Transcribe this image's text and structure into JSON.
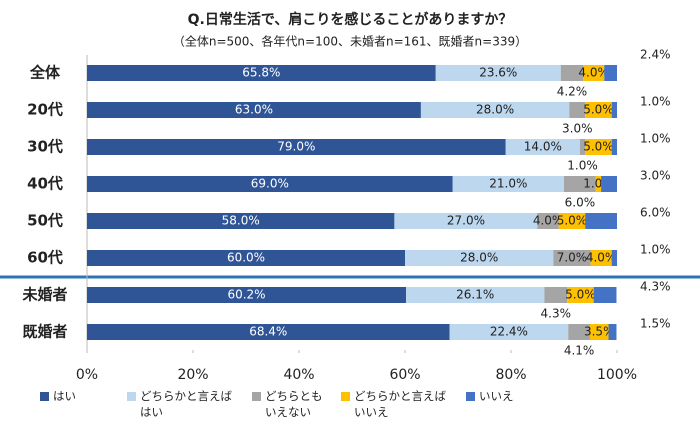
{
  "chart_data": {
    "type": "stacked-bar-horizontal",
    "title": "Q.日常生活で、肩こりを感じることがありますか？",
    "subtitle": "（全体n=500、各年代n=100、未婚者n=161、既婚者n=339）",
    "categories": [
      "全体",
      "20代",
      "30代",
      "40代",
      "50代",
      "60代",
      "未婚者",
      "既婚者"
    ],
    "series": [
      {
        "name": "はい",
        "color": "#2f5597",
        "values": [
          65.8,
          63.0,
          79.0,
          69.0,
          58.0,
          60.0,
          60.2,
          68.4
        ],
        "value_labels": [
          "65.8%",
          "63.0%",
          "79.0%",
          "69.0%",
          "58.0%",
          "60.0%",
          "60.2%",
          "68.4%"
        ]
      },
      {
        "name": "どちらかと言えばはい",
        "color": "#bdd7ee",
        "values": [
          23.6,
          28.0,
          14.0,
          21.0,
          27.0,
          28.0,
          26.1,
          22.4
        ],
        "value_labels": [
          "23.6%",
          "28.0%",
          "14.0%",
          "21.0%",
          "27.0%",
          "28.0%",
          "26.1%",
          "22.4%"
        ]
      },
      {
        "name": "どちらともいえない",
        "color": "#a5a5a5",
        "values": [
          4.2,
          3.0,
          1.0,
          6.0,
          4.0,
          7.0,
          4.3,
          4.1
        ],
        "value_labels": [
          "4.2%",
          "3.0%",
          "1.0%",
          "6.0%",
          "4.0%",
          "7.0%",
          "4.3%",
          "4.1%"
        ]
      },
      {
        "name": "どちらかと言えばいいえ",
        "color": "#ffc000",
        "values": [
          4.0,
          5.0,
          5.0,
          1.0,
          5.0,
          4.0,
          5.0,
          3.5
        ],
        "value_labels": [
          "4.0%",
          "5.0%",
          "5.0%",
          "1.0%",
          "5.0%",
          "4.0%",
          "5.0%",
          "3.5%"
        ]
      },
      {
        "name": "いいえ",
        "color": "#4472c4",
        "values": [
          2.4,
          1.0,
          1.0,
          3.0,
          6.0,
          1.0,
          4.3,
          1.5
        ],
        "value_labels": [
          "2.4%",
          "1.0%",
          "1.0%",
          "3.0%",
          "6.0%",
          "1.0%",
          "4.3%",
          "1.5%"
        ]
      }
    ],
    "xlim": [
      0,
      100
    ],
    "xticks": [
      {
        "value": 0,
        "label": "0%"
      },
      {
        "value": 20,
        "label": "20%"
      },
      {
        "value": 40,
        "label": "40%"
      },
      {
        "value": 60,
        "label": "60%"
      },
      {
        "value": 80,
        "label": "80%"
      },
      {
        "value": 100,
        "label": "100%"
      }
    ],
    "legend": "bottom"
  }
}
